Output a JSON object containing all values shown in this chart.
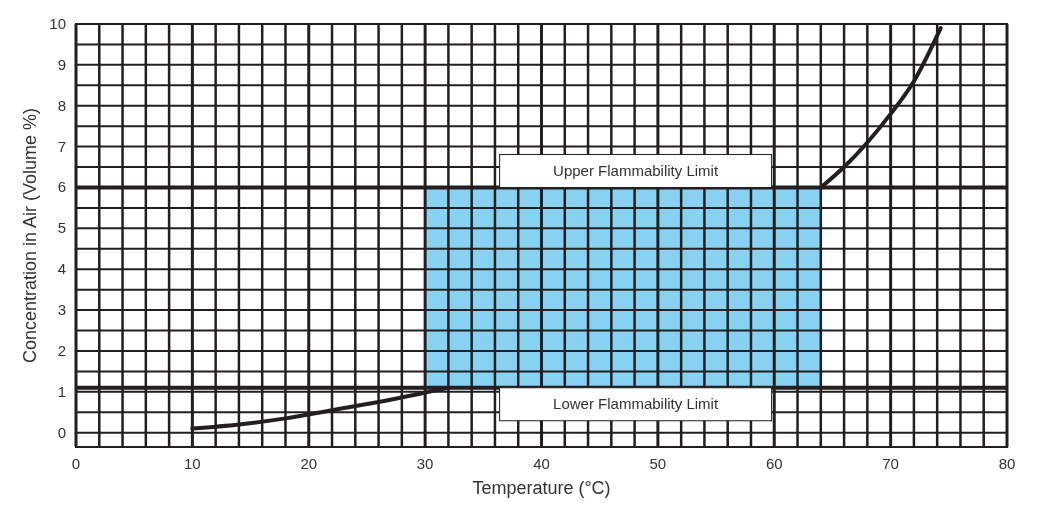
{
  "chart_data": {
    "type": "line",
    "xlabel": "Temperature (°C)",
    "ylabel": "Concentration in Air (Volume %)",
    "series": [
      {
        "color": "#231f20",
        "x": [
          10,
          14,
          18,
          22,
          26,
          30,
          32
        ],
        "values": [
          0.1,
          0.2,
          0.35,
          0.55,
          0.75,
          0.98,
          1.1
        ]
      },
      {
        "color": "#231f20",
        "x": [
          64,
          66,
          68,
          70,
          72,
          74.3
        ],
        "values": [
          6,
          6.5,
          7.1,
          7.8,
          8.6,
          9.9
        ]
      }
    ],
    "xlim": [
      0,
      80
    ],
    "xticks": [
      0,
      {
        "value": 2,
        "label": null
      },
      {
        "value": 4,
        "label": null
      },
      {
        "value": 6,
        "label": null
      },
      {
        "value": 8,
        "label": null
      },
      10,
      {
        "value": 12,
        "label": null
      },
      {
        "value": 14,
        "label": null
      },
      {
        "value": 16,
        "label": null
      },
      {
        "value": 18,
        "label": null
      },
      20,
      {
        "value": 22,
        "label": null
      },
      {
        "value": 24,
        "label": null
      },
      {
        "value": 26,
        "label": null
      },
      {
        "value": 28,
        "label": null
      },
      30,
      {
        "value": 32,
        "label": null
      },
      {
        "value": 34,
        "label": null
      },
      {
        "value": 36,
        "label": null
      },
      {
        "value": 38,
        "label": null
      },
      40,
      {
        "value": 42,
        "label": null
      },
      {
        "value": 44,
        "label": null
      },
      {
        "value": 46,
        "label": null
      },
      {
        "value": 48,
        "label": null
      },
      50,
      {
        "value": 52,
        "label": null
      },
      {
        "value": 54,
        "label": null
      },
      {
        "value": 56,
        "label": null
      },
      {
        "value": 58,
        "label": null
      },
      60,
      {
        "value": 62,
        "label": null
      },
      {
        "value": 64,
        "label": null
      },
      {
        "value": 66,
        "label": null
      },
      {
        "value": 68,
        "label": null
      },
      70,
      {
        "value": 72,
        "label": null
      },
      {
        "value": 74,
        "label": null
      },
      {
        "value": 76,
        "label": null
      },
      {
        "value": 78,
        "label": null
      },
      80
    ],
    "ylim": [
      -0.35,
      10
    ],
    "yticks": [
      0,
      {
        "value": 0.5,
        "label": null
      },
      1,
      {
        "value": 1.5,
        "label": null
      },
      2,
      {
        "value": 2.5,
        "label": null
      },
      3,
      {
        "value": 3.5,
        "label": null
      },
      4,
      {
        "value": 4.5,
        "label": null
      },
      5,
      {
        "value": 5.5,
        "label": null
      },
      6,
      {
        "value": 6.5,
        "label": null
      },
      7,
      {
        "value": 7.5,
        "label": null
      },
      8,
      {
        "value": 8.5,
        "label": null
      },
      9,
      {
        "value": 9.5,
        "label": null
      },
      10
    ],
    "grid": true,
    "bands": [
      {
        "axis": "x",
        "from": 30,
        "to": 64,
        "color": "#87d1f1"
      }
    ],
    "ref_lines": [
      {
        "axis": "y",
        "value": 6,
        "label": "Upper Flammability Limit",
        "color": "#231f20"
      },
      {
        "axis": "y",
        "value": 1.1,
        "label": "Lower Flammability Limit",
        "color": "#231f20"
      }
    ],
    "marker": "none",
    "line_style": "solid"
  }
}
